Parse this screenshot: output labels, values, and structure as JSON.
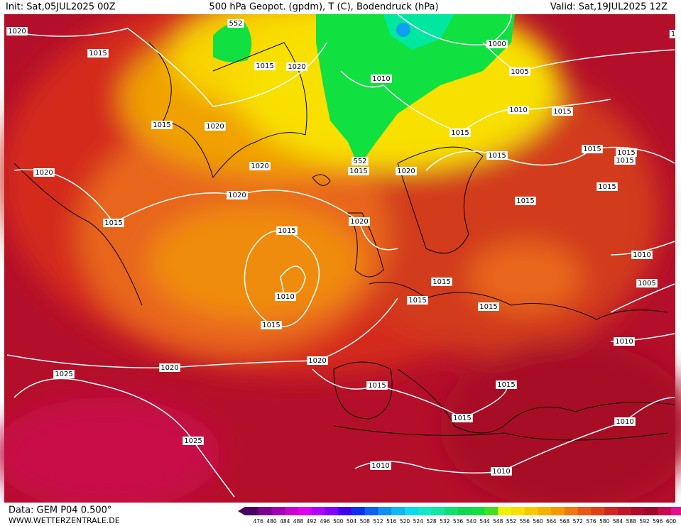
{
  "header": {
    "init": "Init: Sat,05JUL2025 00Z",
    "title": "500 hPa Geopot. (gpdm), T (C), Bodendruck (hPa)",
    "valid": "Valid: Sat,19JUL2025 12Z"
  },
  "isobar_labels": [
    "1020",
    "1015",
    "552",
    "1015",
    "1020",
    "1000",
    "1010",
    "1005",
    "1010",
    "1015",
    "1015",
    "1020",
    "1015",
    "1015",
    "1015",
    "1015",
    "1015",
    "1020",
    "552",
    "1015",
    "1020",
    "1020",
    "1015",
    "1020",
    "1015",
    "1015",
    "1020",
    "1015",
    "1010",
    "1015",
    "1005",
    "1010",
    "1015",
    "1015",
    "1015",
    "1010",
    "1020",
    "1020",
    "1025",
    "1015",
    "1015",
    "1015",
    "1010",
    "1025",
    "1010",
    "1010",
    "1"
  ],
  "scale": [
    476,
    480,
    484,
    488,
    492,
    496,
    500,
    504,
    508,
    512,
    516,
    520,
    524,
    528,
    532,
    536,
    540,
    544,
    548,
    552,
    556,
    560,
    564,
    568,
    572,
    576,
    580,
    584,
    588,
    592,
    596,
    600
  ],
  "footer": {
    "data": "Data: GEM P04 0.500°",
    "site": "WWW.WETTERZENTRALE.DE"
  }
}
